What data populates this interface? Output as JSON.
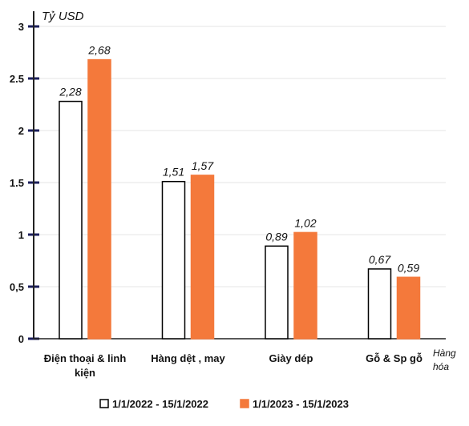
{
  "chart_data": {
    "type": "bar",
    "ylabel": "Tỷ USD",
    "xlabel": [
      "Hàng",
      "hóa"
    ],
    "ylim": [
      0,
      3
    ],
    "yticks": [
      "0",
      "0,5",
      "1",
      "1.5",
      "2",
      "2.5",
      "3"
    ],
    "categories": [
      [
        "Điện thoại & linh",
        "kiện"
      ],
      [
        "Hàng dệt , may"
      ],
      [
        "Giày dép"
      ],
      [
        "Gỗ & Sp gỗ"
      ]
    ],
    "series": [
      {
        "name": "1/1/2022 - 15/1/2022",
        "values": [
          2.28,
          1.51,
          0.89,
          0.67
        ],
        "labels": [
          "2,28",
          "1,51",
          "0,89",
          "0,67"
        ],
        "color": "#ffffff",
        "stroke": "#000000"
      },
      {
        "name": "1/1/2023 - 15/1/2023",
        "values": [
          2.68,
          1.57,
          1.02,
          0.59
        ],
        "labels": [
          "2,68",
          "1,57",
          "1,02",
          "0,59"
        ],
        "color": "#f4793b",
        "stroke": "#f4793b"
      }
    ],
    "legend_position": "bottom",
    "grid": true
  }
}
